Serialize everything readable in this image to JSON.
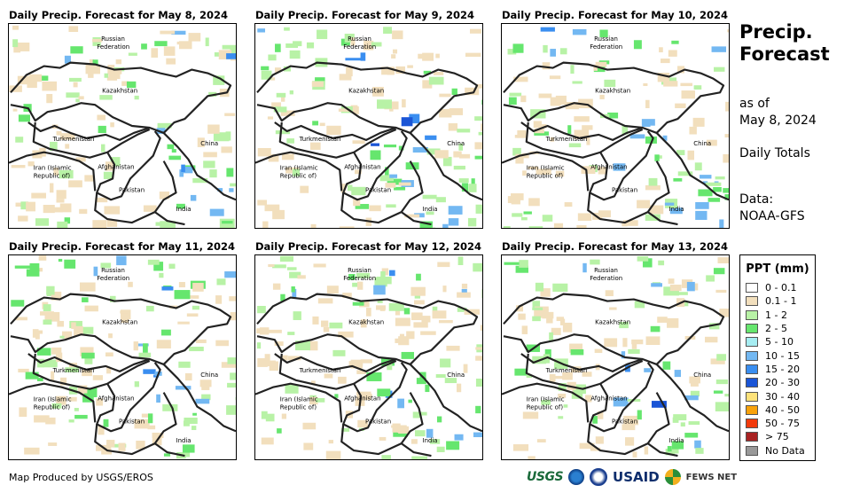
{
  "panels": [
    {
      "title": "Daily Precip. Forecast for May 8, 2024"
    },
    {
      "title": "Daily Precip. Forecast for May 9, 2024"
    },
    {
      "title": "Daily Precip. Forecast for May 10, 2024"
    },
    {
      "title": "Daily Precip. Forecast for May 11, 2024"
    },
    {
      "title": "Daily Precip. Forecast for May 12, 2024"
    },
    {
      "title": "Daily Precip. Forecast for May 13, 2024"
    }
  ],
  "map_labels": {
    "russia_1": "Russian",
    "russia_2": "Federation",
    "kazakhstan": "Kazakhstan",
    "turkmenistan": "Turkmenistan",
    "china": "China",
    "iran_1": "Iran  (Islamic",
    "iran_2": "Republic of)",
    "afghanistan": "Afghanistan",
    "pakistan": "Pakistan",
    "india": "India"
  },
  "side": {
    "title_1": "Precip.",
    "title_2": "Forecast",
    "asof_1": "as of",
    "asof_2": "May 8, 2024",
    "totals": "Daily Totals",
    "data_1": "Data:",
    "data_2": "NOAA-GFS"
  },
  "legend": {
    "title": "PPT (mm)",
    "items": [
      {
        "label": "0 - 0.1",
        "color": "#ffffff"
      },
      {
        "label": "0.1 - 1",
        "color": "#f2dfbd"
      },
      {
        "label": "1 - 2",
        "color": "#b8f2a6"
      },
      {
        "label": "2 - 5",
        "color": "#66e66e"
      },
      {
        "label": "5 - 10",
        "color": "#a6edf2"
      },
      {
        "label": "10 - 15",
        "color": "#73b8f2"
      },
      {
        "label": "15 - 20",
        "color": "#3a8ef0"
      },
      {
        "label": "20 - 30",
        "color": "#1a55d6"
      },
      {
        "label": "30 - 40",
        "color": "#fde27a"
      },
      {
        "label": "40 - 50",
        "color": "#f8a20c"
      },
      {
        "label": "50 - 75",
        "color": "#f23a0c"
      },
      {
        "label": "> 75",
        "color": "#a82222"
      },
      {
        "label": "No Data",
        "color": "#999999"
      }
    ]
  },
  "footer": {
    "credit": "Map Produced by USGS/EROS"
  },
  "logos": {
    "usgs": "USGS",
    "usaid": "USAID",
    "fews": "FEWS NET"
  },
  "icons": {
    "noaa": "noaa-logo-icon",
    "dhs": "usaid-seal-icon",
    "fews": "fews-net-logo-icon"
  }
}
